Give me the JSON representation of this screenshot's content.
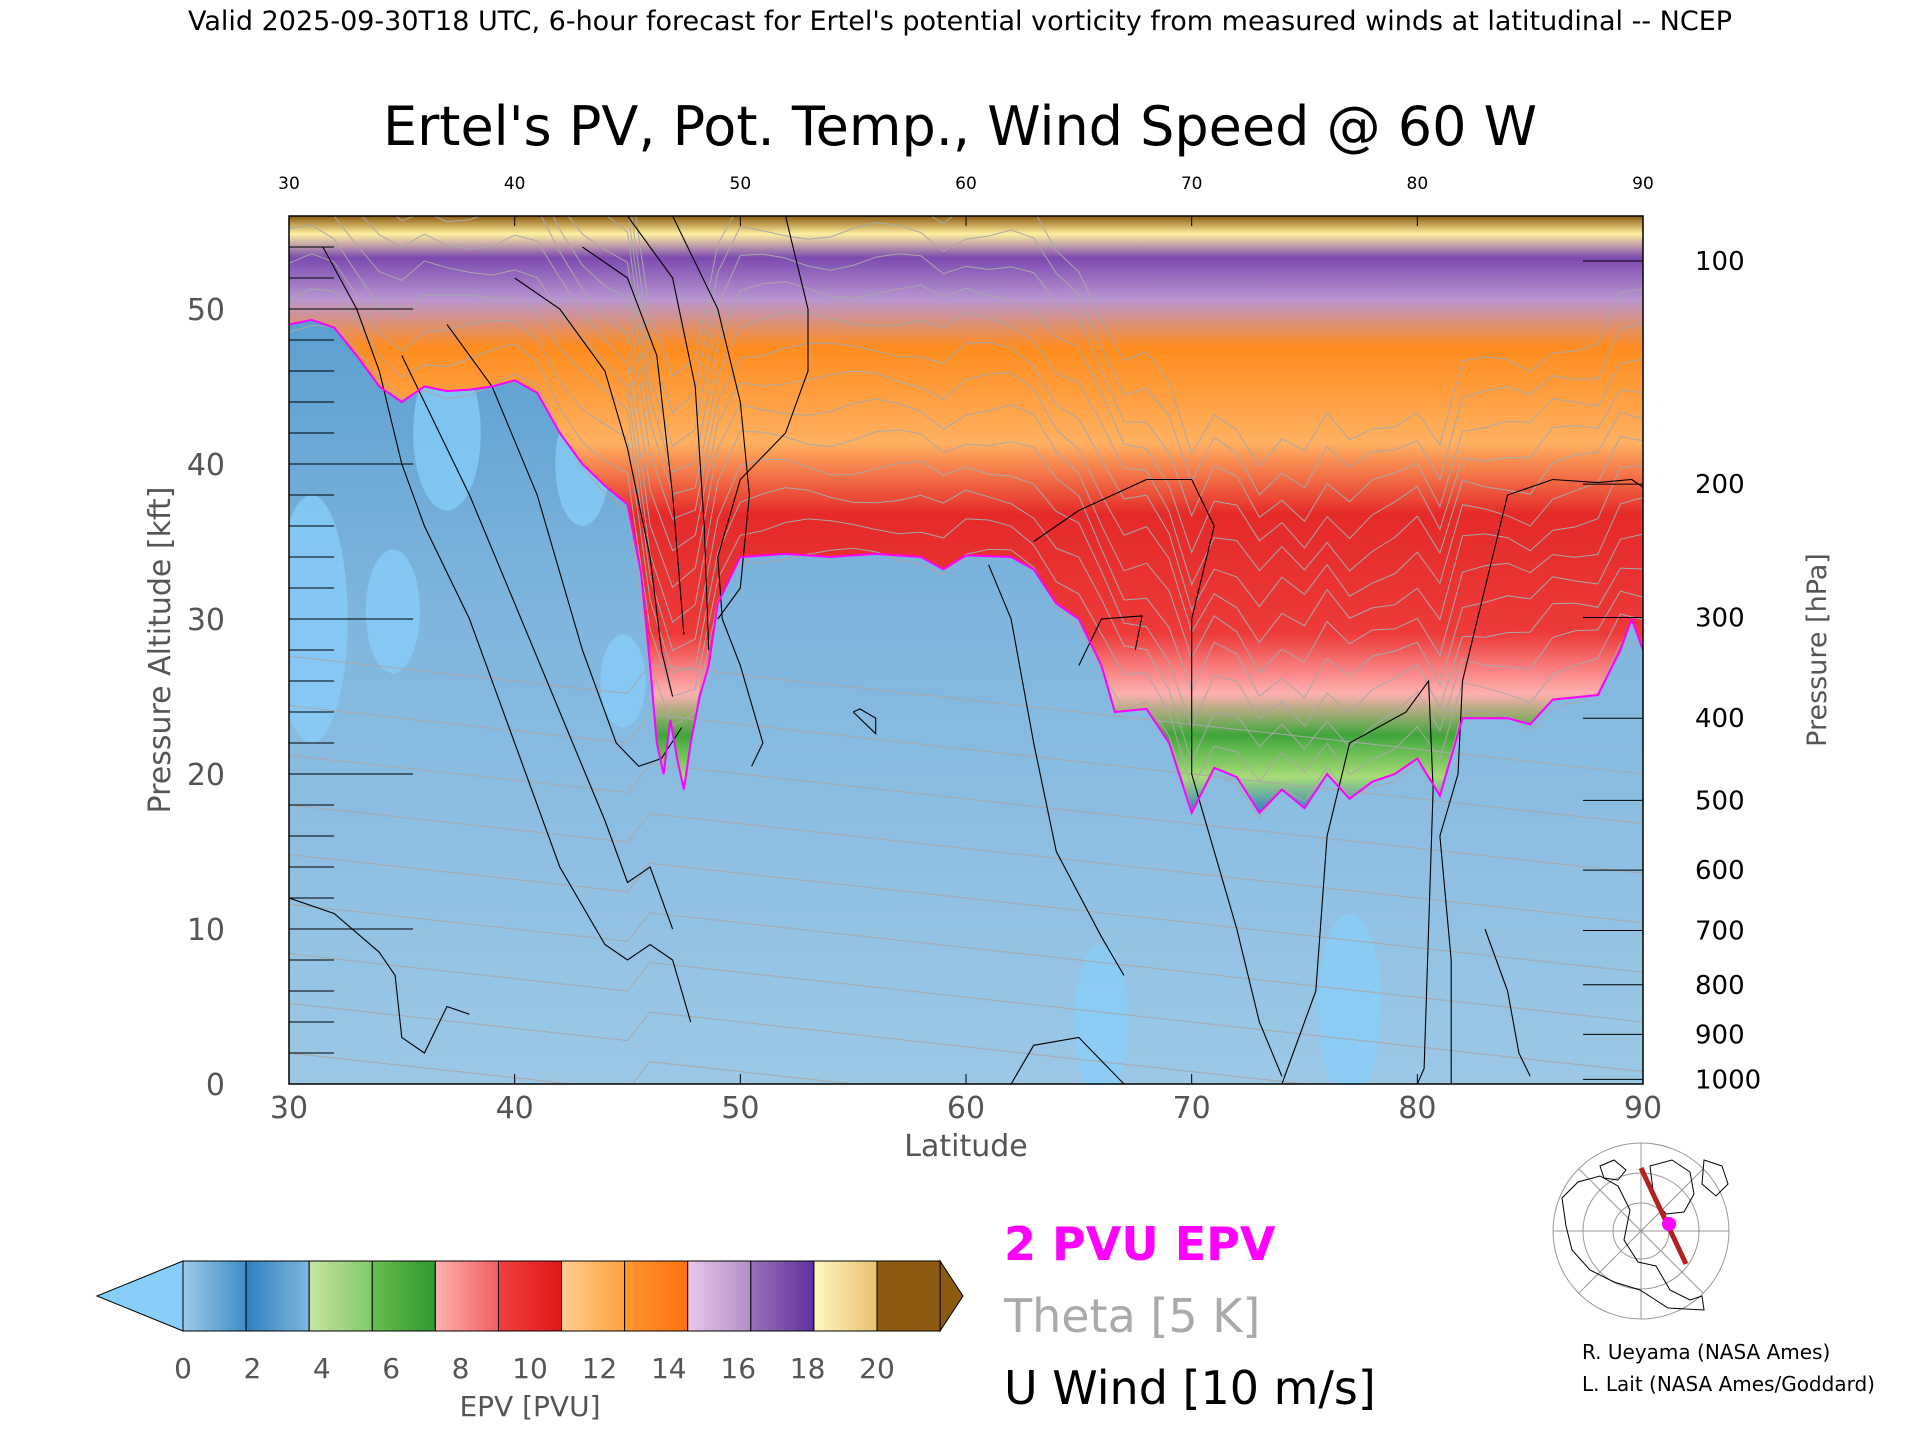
{
  "header_line": "Valid 2025-09-30T18 UTC, 6-hour forecast for Ertel's potential vorticity from measured winds at latitudinal -- NCEP",
  "chart_data": {
    "type": "heatmap",
    "title": "Ertel's PV, Pot. Temp., Wind Speed @ 60 W",
    "xlabel": "Latitude",
    "ylabel": "Pressure Altitude [kft]",
    "y2label": "Pressure [hPa]",
    "xlim": [
      30,
      90
    ],
    "ylim": [
      0,
      56
    ],
    "x_ticks": [
      30,
      40,
      50,
      60,
      70,
      80,
      90
    ],
    "y_ticks": [
      0,
      10,
      20,
      30,
      40,
      50
    ],
    "pressure_ticks": [
      {
        "hPa": 100,
        "kft": 53.1
      },
      {
        "hPa": 200,
        "kft": 38.7
      },
      {
        "hPa": 300,
        "kft": 30.1
      },
      {
        "hPa": 400,
        "kft": 23.6
      },
      {
        "hPa": 500,
        "kft": 18.3
      },
      {
        "hPa": 600,
        "kft": 13.8
      },
      {
        "hPa": 700,
        "kft": 9.9
      },
      {
        "hPa": 800,
        "kft": 6.4
      },
      {
        "hPa": 900,
        "kft": 3.2
      },
      {
        "hPa": 1000,
        "kft": 0.3
      }
    ],
    "tropopause_2pvu": [
      [
        30,
        49
      ],
      [
        31,
        49.3
      ],
      [
        32,
        48.8
      ],
      [
        33,
        47
      ],
      [
        34,
        45
      ],
      [
        35,
        44
      ],
      [
        36,
        45
      ],
      [
        37,
        44.7
      ],
      [
        38,
        44.8
      ],
      [
        39,
        45
      ],
      [
        40,
        45.4
      ],
      [
        41,
        44.6
      ],
      [
        42,
        42
      ],
      [
        43,
        40
      ],
      [
        44,
        38.6
      ],
      [
        45,
        37.4
      ],
      [
        45.6,
        33
      ],
      [
        46,
        27
      ],
      [
        46.3,
        22
      ],
      [
        46.6,
        20
      ],
      [
        46.9,
        23.5
      ],
      [
        47.2,
        21
      ],
      [
        47.5,
        19
      ],
      [
        47.8,
        22
      ],
      [
        48.2,
        25
      ],
      [
        48.6,
        27
      ],
      [
        49,
        31
      ],
      [
        50,
        34
      ],
      [
        52,
        34.2
      ],
      [
        54,
        34
      ],
      [
        56,
        34.2
      ],
      [
        58,
        34
      ],
      [
        59,
        33.2
      ],
      [
        60,
        34.1
      ],
      [
        62,
        34
      ],
      [
        63,
        33.2
      ],
      [
        64,
        31
      ],
      [
        65,
        30
      ],
      [
        66,
        27
      ],
      [
        66.6,
        24
      ],
      [
        68,
        24.2
      ],
      [
        69,
        22
      ],
      [
        70,
        17.5
      ],
      [
        71,
        20.4
      ],
      [
        72,
        19.8
      ],
      [
        73,
        17.5
      ],
      [
        74,
        19
      ],
      [
        75,
        17.8
      ],
      [
        76,
        20
      ],
      [
        77,
        18.4
      ],
      [
        78,
        19.5
      ],
      [
        79,
        20
      ],
      [
        80,
        21
      ],
      [
        81,
        18.6
      ],
      [
        82,
        23.6
      ],
      [
        84,
        23.6
      ],
      [
        85,
        23.2
      ],
      [
        86,
        24.8
      ],
      [
        88,
        25.1
      ],
      [
        89,
        28
      ],
      [
        89.5,
        30
      ],
      [
        90,
        28
      ]
    ],
    "epv_colorbar": {
      "label": "EPV [PVU]",
      "ticks": [
        0,
        2,
        4,
        6,
        8,
        10,
        12,
        14,
        16,
        18,
        20
      ],
      "under_color": "#87cefa",
      "over_color": "#8b5a10",
      "bins": [
        [
          "#9fc9e8",
          "#3d8ec6"
        ],
        [
          "#2f80c0",
          "#7fb8df"
        ],
        [
          "#c8e6a0",
          "#7ec86a"
        ],
        [
          "#6abc4e",
          "#2e9a2e"
        ],
        [
          "#ffb0b0",
          "#f06060"
        ],
        [
          "#f04040",
          "#e01818"
        ],
        [
          "#ffd090",
          "#ffa040"
        ],
        [
          "#ff9830",
          "#ff7010"
        ],
        [
          "#e8c8e8",
          "#b090c8"
        ],
        [
          "#9870b8",
          "#6030a0"
        ],
        [
          "#fff8c0",
          "#e8c070"
        ]
      ]
    },
    "legend": [
      {
        "label": "2 PVU EPV",
        "color": "#ff00ff"
      },
      {
        "label": "Theta [5 K]",
        "color": "#aaaaaa"
      },
      {
        "label": "U Wind [10 m/s]",
        "color": "#000000"
      }
    ]
  },
  "map_inset": {
    "marker_color": "#ff00ff",
    "transect_color": "#b22222"
  },
  "credits": [
    "R. Ueyama (NASA Ames)",
    "L. Lait (NASA Ames/Goddard)"
  ]
}
